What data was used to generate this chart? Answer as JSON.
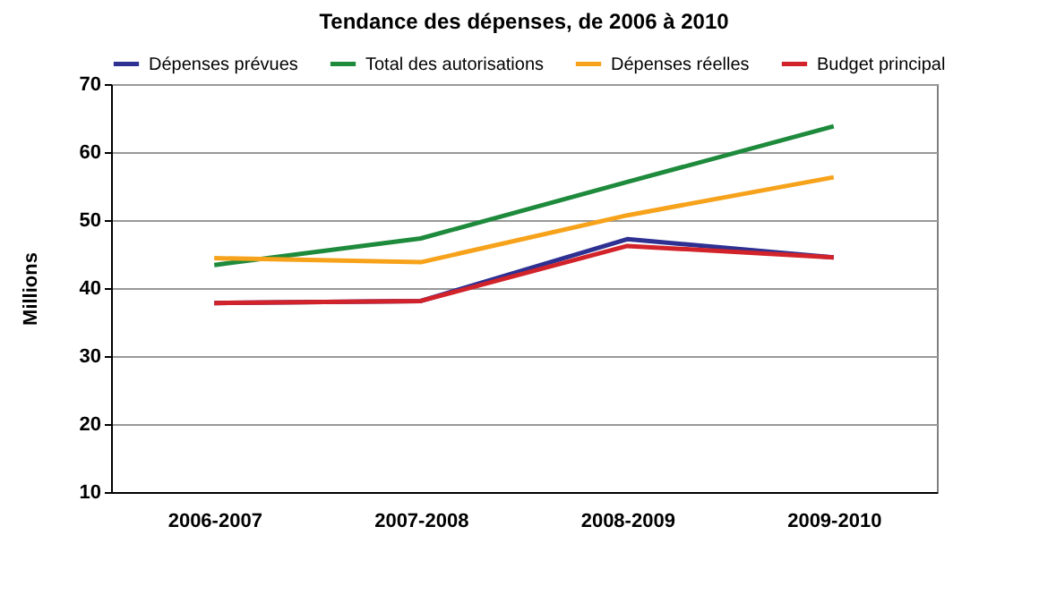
{
  "chart_data": {
    "type": "line",
    "title": "Tendance des dépenses, de 2006 à 2010",
    "ylabel": "Millions",
    "categories": [
      "2006-2007",
      "2007-2008",
      "2008-2009",
      "2009-2010"
    ],
    "series": [
      {
        "name": "Dépenses prévues",
        "color": "#2e3192",
        "values": [
          37.8,
          38.1,
          47.2,
          44.5
        ]
      },
      {
        "name": "Total des autorisations",
        "color": "#1e8a3c",
        "values": [
          43.4,
          47.3,
          55.6,
          63.8
        ]
      },
      {
        "name": "Dépenses réelles",
        "color": "#f7a21b",
        "values": [
          44.4,
          43.8,
          50.7,
          56.3
        ]
      },
      {
        "name": "Budget principal",
        "color": "#d2232a",
        "values": [
          37.8,
          38.1,
          46.2,
          44.5
        ]
      }
    ],
    "ylim": [
      10,
      70
    ],
    "yticks": [
      10,
      20,
      30,
      40,
      50,
      60,
      70
    ],
    "grid": "y",
    "legend": "top",
    "marker": "none",
    "line_style": "solid"
  }
}
